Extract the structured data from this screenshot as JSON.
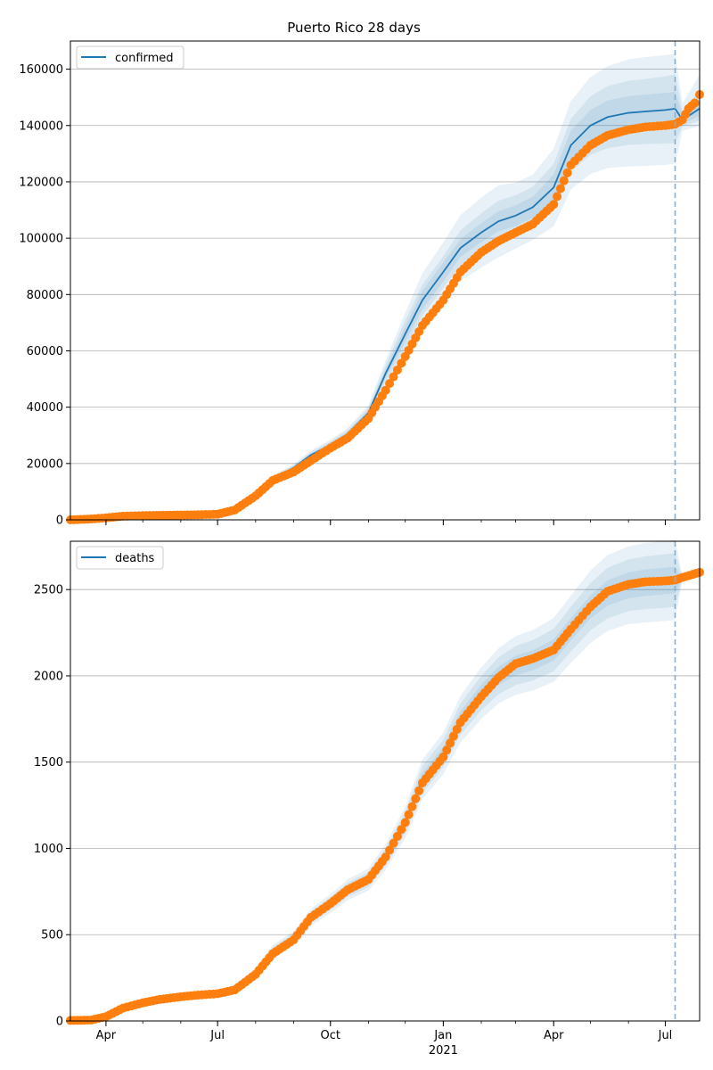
{
  "figure": {
    "title": "Puerto Rico 28 days"
  },
  "colors": {
    "model": "#1f77b4",
    "observed": "#ff7f0e",
    "grid": "#b0b0b0",
    "cutoff": "#7fb0d8"
  },
  "x_axis": {
    "ticks": [
      {
        "label": "Apr",
        "date": "2020-04-01"
      },
      {
        "label": "Jul",
        "date": "2020-07-01"
      },
      {
        "label": "Oct",
        "date": "2020-10-01"
      },
      {
        "label": "Jan",
        "date": "2021-01-01"
      },
      {
        "label": "Apr",
        "date": "2021-04-01"
      },
      {
        "label": "Jul",
        "date": "2021-07-01"
      }
    ],
    "year_label": "2021"
  },
  "chart_data": [
    {
      "type": "line",
      "legend": "confirmed",
      "legend_position": "top-left",
      "grid": "y",
      "xlim": [
        "2020-03-03",
        "2021-07-29"
      ],
      "ylim": [
        0,
        170000
      ],
      "yticks": [
        0,
        20000,
        40000,
        60000,
        80000,
        100000,
        120000,
        140000,
        160000
      ],
      "cutoff_date": "2021-07-09",
      "model_x": [
        "2020-03-03",
        "2020-04-01",
        "2020-05-01",
        "2020-06-01",
        "2020-07-01",
        "2020-07-15",
        "2020-08-01",
        "2020-08-15",
        "2020-09-01",
        "2020-09-15",
        "2020-10-01",
        "2020-10-15",
        "2020-11-01",
        "2020-11-15",
        "2020-12-01",
        "2020-12-15",
        "2021-01-01",
        "2021-01-15",
        "2021-02-01",
        "2021-02-15",
        "2021-03-01",
        "2021-03-15",
        "2021-04-01",
        "2021-04-15",
        "2021-05-01",
        "2021-05-15",
        "2021-06-01",
        "2021-06-15",
        "2021-07-01",
        "2021-07-09",
        "2021-07-15",
        "2021-07-29"
      ],
      "model": [
        200,
        800,
        1300,
        1500,
        1800,
        3500,
        9000,
        14500,
        18500,
        23000,
        26500,
        30500,
        38000,
        52000,
        66000,
        78000,
        88000,
        96500,
        102000,
        106000,
        108000,
        111000,
        118000,
        133000,
        140000,
        143000,
        144500,
        145000,
        145500,
        146000,
        142000,
        146000
      ],
      "bands": [
        {
          "lower": [
            150,
            650,
            1100,
            1300,
            1500,
            3000,
            8000,
            13200,
            17200,
            21400,
            24500,
            28400,
            35200,
            47300,
            58400,
            68400,
            77500,
            84800,
            89600,
            93200,
            96300,
            99400,
            104200,
            117300,
            122800,
            124900,
            125500,
            125700,
            126000,
            126500,
            138000,
            140000
          ],
          "upper": [
            250,
            950,
            1500,
            1700,
            2100,
            4000,
            10000,
            15800,
            19800,
            24600,
            28500,
            32600,
            40800,
            56700,
            73600,
            87600,
            98500,
            108200,
            114400,
            118800,
            119700,
            122600,
            131800,
            148700,
            157200,
            161100,
            163500,
            164300,
            165000,
            165500,
            148000,
            158000
          ]
        },
        {
          "lower": [
            170,
            700,
            1180,
            1370,
            1620,
            3180,
            8370,
            13650,
            17630,
            21950,
            25200,
            29150,
            36210,
            49030,
            61040,
            72450,
            82410,
            90200,
            95150,
            98720,
            100770,
            103710,
            109600,
            123630,
            129600,
            131980,
            133100,
            133450,
            133600,
            133800,
            139600,
            141800
          ],
          "upper": [
            230,
            900,
            1420,
            1630,
            1980,
            3820,
            9630,
            15350,
            19370,
            24050,
            27800,
            31850,
            39790,
            54970,
            70960,
            83550,
            93590,
            102800,
            108850,
            113280,
            115230,
            118290,
            126400,
            142370,
            150400,
            154020,
            155900,
            156550,
            157400,
            158200,
            145200,
            152600
          ]
        },
        {
          "lower": [
            185,
            745,
            1230,
            1420,
            1700,
            3310,
            8660,
            14000,
            17980,
            22400,
            25780,
            29770,
            37030,
            50420,
            63350,
            74710,
            84640,
            93340,
            98570,
            102460,
            104290,
            107290,
            113320,
            127800,
            134480,
            137110,
            138560,
            139050,
            139420,
            140000,
            140600,
            143400
          ],
          "upper": [
            215,
            855,
            1370,
            1580,
            1900,
            3690,
            9340,
            15000,
            19020,
            23600,
            27220,
            31230,
            38970,
            53580,
            68650,
            81290,
            91360,
            99660,
            105430,
            109540,
            111710,
            114710,
            122680,
            138200,
            145520,
            148890,
            150440,
            150950,
            151580,
            152000,
            143600,
            148600
          ]
        }
      ],
      "observed_x": [
        "2020-03-03",
        "2020-03-20",
        "2020-04-01",
        "2020-04-15",
        "2020-05-01",
        "2020-05-15",
        "2020-06-01",
        "2020-06-15",
        "2020-07-01",
        "2020-07-15",
        "2020-08-01",
        "2020-08-15",
        "2020-09-01",
        "2020-09-15",
        "2020-10-01",
        "2020-10-15",
        "2020-11-01",
        "2020-11-15",
        "2020-12-01",
        "2020-12-15",
        "2021-01-01",
        "2021-01-15",
        "2021-02-01",
        "2021-02-15",
        "2021-03-01",
        "2021-03-15",
        "2021-04-01",
        "2021-04-15",
        "2021-05-01",
        "2021-05-15",
        "2021-06-01",
        "2021-06-15",
        "2021-07-01",
        "2021-07-09",
        "2021-07-15",
        "2021-07-20",
        "2021-07-25",
        "2021-07-29"
      ],
      "observed": [
        0,
        300,
        700,
        1300,
        1500,
        1600,
        1700,
        1800,
        2000,
        3500,
        8500,
        14000,
        17000,
        21000,
        25500,
        29000,
        36000,
        46000,
        58000,
        69000,
        78000,
        88000,
        95000,
        99000,
        102000,
        105000,
        112000,
        126000,
        133000,
        136500,
        138500,
        139500,
        140000,
        140500,
        142000,
        146000,
        148000,
        151000
      ]
    },
    {
      "type": "line",
      "legend": "deaths",
      "legend_position": "top-left",
      "grid": "y",
      "xlim": [
        "2020-03-03",
        "2021-07-29"
      ],
      "ylim": [
        0,
        2780
      ],
      "yticks": [
        0,
        500,
        1000,
        1500,
        2000,
        2500
      ],
      "cutoff_date": "2021-07-09",
      "model_x": [
        "2020-03-03",
        "2020-03-20",
        "2020-04-01",
        "2020-04-15",
        "2020-05-01",
        "2020-05-15",
        "2020-06-01",
        "2020-06-15",
        "2020-07-01",
        "2020-07-15",
        "2020-08-01",
        "2020-08-15",
        "2020-09-01",
        "2020-09-15",
        "2020-10-01",
        "2020-10-15",
        "2020-11-01",
        "2020-11-15",
        "2020-12-01",
        "2020-12-15",
        "2021-01-01",
        "2021-01-15",
        "2021-02-01",
        "2021-02-15",
        "2021-03-01",
        "2021-03-15",
        "2021-04-01",
        "2021-04-15",
        "2021-05-01",
        "2021-05-15",
        "2021-06-01",
        "2021-06-15",
        "2021-07-01",
        "2021-07-09",
        "2021-07-15",
        "2021-07-29"
      ],
      "model": [
        5,
        8,
        25,
        70,
        110,
        130,
        145,
        155,
        162,
        185,
        280,
        400,
        480,
        600,
        680,
        760,
        820,
        950,
        1150,
        1400,
        1550,
        1750,
        1900,
        2000,
        2060,
        2090,
        2150,
        2270,
        2400,
        2480,
        2525,
        2540,
        2550,
        2555,
        2565,
        2600
      ],
      "bands": [
        {
          "lower": [
            3,
            6,
            20,
            60,
            95,
            115,
            130,
            140,
            147,
            165,
            250,
            360,
            440,
            550,
            625,
            700,
            755,
            875,
            1060,
            1285,
            1430,
            1615,
            1750,
            1840,
            1890,
            1915,
            1965,
            2075,
            2190,
            2260,
            2300,
            2310,
            2318,
            2322,
            2560,
            2590
          ],
          "upper": [
            7,
            10,
            30,
            80,
            125,
            145,
            160,
            170,
            177,
            205,
            310,
            440,
            520,
            650,
            735,
            820,
            885,
            1025,
            1240,
            1515,
            1670,
            1885,
            2050,
            2160,
            2230,
            2265,
            2335,
            2465,
            2610,
            2700,
            2750,
            2770,
            2782,
            2788,
            2575,
            2620
          ]
        },
        {
          "lower": [
            3.6,
            6.6,
            21.7,
            63.5,
            100,
            120,
            135,
            145,
            152,
            172,
            260,
            373,
            453,
            567,
            643,
            720,
            777,
            900,
            1090,
            1323,
            1470,
            1660,
            1800,
            1893,
            1947,
            1973,
            2027,
            2140,
            2263,
            2333,
            2375,
            2387,
            2395,
            2400,
            2562,
            2595
          ],
          "upper": [
            6.4,
            9.4,
            28.3,
            76.5,
            120,
            140,
            155,
            165,
            172,
            198,
            300,
            427,
            507,
            633,
            717,
            800,
            863,
            1000,
            1210,
            1477,
            1630,
            1840,
            2000,
            2107,
            2173,
            2207,
            2273,
            2400,
            2537,
            2627,
            2675,
            2693,
            2705,
            2710,
            2568,
            2605
          ]
        },
        {
          "lower": [
            4.2,
            7.2,
            23.3,
            66.5,
            105,
            125,
            140,
            150,
            157,
            178,
            270,
            387,
            467,
            583,
            662,
            740,
            798,
            925,
            1120,
            1362,
            1510,
            1705,
            1850,
            1947,
            2003,
            2032,
            2088,
            2205,
            2333,
            2407,
            2450,
            2463,
            2473,
            2478,
            2563,
            2598
          ],
          "upper": [
            5.8,
            8.8,
            26.7,
            73.5,
            115,
            135,
            150,
            160,
            167,
            192,
            290,
            413,
            493,
            617,
            698,
            780,
            842,
            975,
            1180,
            1438,
            1590,
            1795,
            1950,
            2053,
            2117,
            2148,
            2212,
            2335,
            2467,
            2553,
            2600,
            2617,
            2627,
            2632,
            2567,
            2602
          ]
        }
      ],
      "observed_x": [
        "2020-03-03",
        "2020-03-20",
        "2020-04-01",
        "2020-04-15",
        "2020-05-01",
        "2020-05-15",
        "2020-06-01",
        "2020-06-15",
        "2020-07-01",
        "2020-07-15",
        "2020-08-01",
        "2020-08-15",
        "2020-09-01",
        "2020-09-15",
        "2020-10-01",
        "2020-10-15",
        "2020-11-01",
        "2020-11-15",
        "2020-12-01",
        "2020-12-15",
        "2021-01-01",
        "2021-01-15",
        "2021-02-01",
        "2021-02-15",
        "2021-03-01",
        "2021-03-15",
        "2021-04-01",
        "2021-04-15",
        "2021-05-01",
        "2021-05-15",
        "2021-06-01",
        "2021-06-15",
        "2021-07-01",
        "2021-07-09",
        "2021-07-15",
        "2021-07-29"
      ],
      "observed": [
        3,
        5,
        25,
        75,
        105,
        125,
        140,
        150,
        158,
        180,
        270,
        390,
        470,
        600,
        680,
        760,
        820,
        950,
        1150,
        1380,
        1530,
        1730,
        1880,
        1990,
        2070,
        2100,
        2150,
        2270,
        2400,
        2490,
        2530,
        2545,
        2550,
        2555,
        2570,
        2600
      ]
    }
  ]
}
